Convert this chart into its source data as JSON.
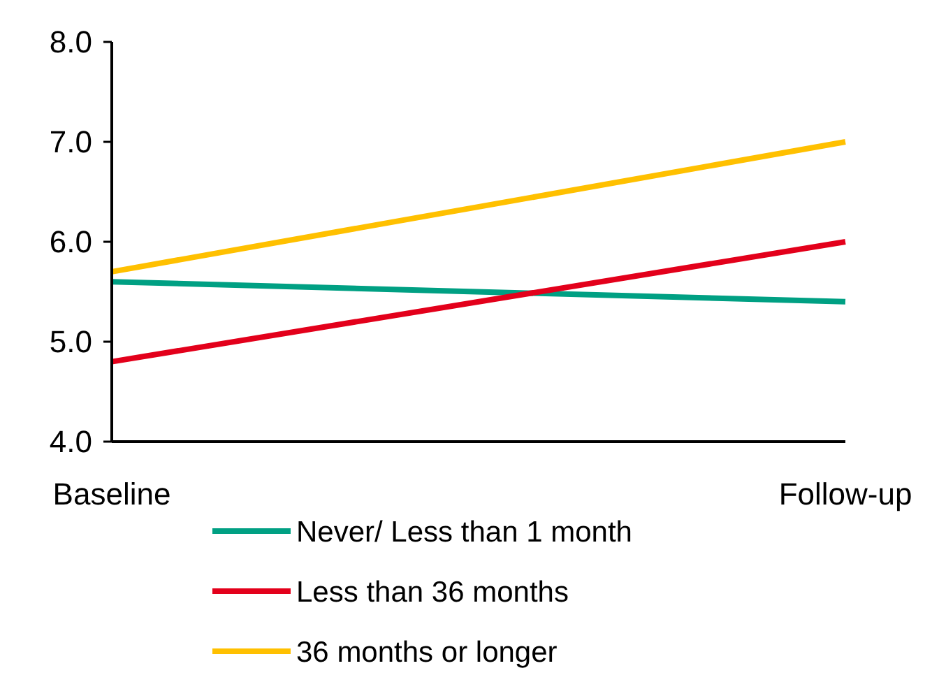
{
  "chart_data": {
    "type": "line",
    "categories": [
      "Baseline",
      "Follow-up"
    ],
    "series": [
      {
        "name": "Never/ Less than 1 month",
        "color": "#00a083",
        "values": [
          5.6,
          5.4
        ]
      },
      {
        "name": "Less than 36 months",
        "color": "#e3001b",
        "values": [
          4.8,
          6.0
        ]
      },
      {
        "name": "36 months or longer",
        "color": "#ffc000",
        "values": [
          5.7,
          7.0
        ]
      }
    ],
    "ylim": [
      4,
      8
    ],
    "yticks": [
      {
        "value": 4,
        "label": "4.0"
      },
      {
        "value": 5,
        "label": "5.0"
      },
      {
        "value": 6,
        "label": "6.0"
      },
      {
        "value": 7,
        "label": "7.0"
      },
      {
        "value": 8,
        "label": "8.0"
      }
    ],
    "grid": false,
    "legend": "bottom",
    "marker": "none",
    "line_style": "solid"
  }
}
